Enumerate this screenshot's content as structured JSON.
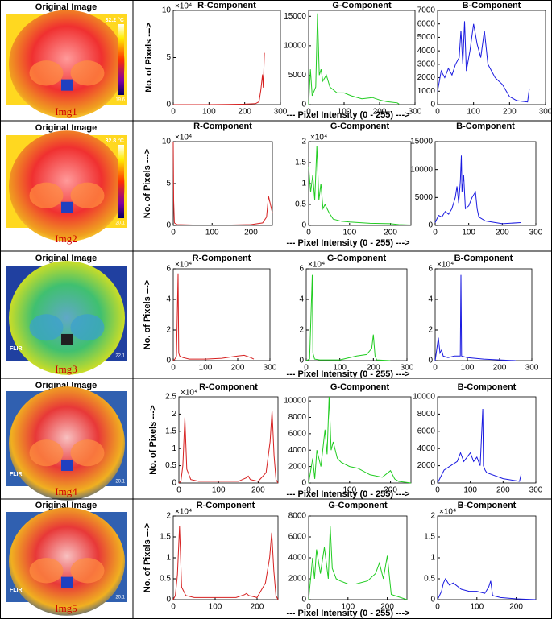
{
  "rows": [
    {
      "image_title": "Original Image",
      "image_label": "Img1",
      "image_texts": [
        "32.2 °C",
        "19.6"
      ],
      "y_label": "No. of Pixels --->",
      "x_label": "--- Pixel Intensity (0 - 255) --->"
    },
    {
      "image_title": "Original Image",
      "image_label": "Img2",
      "image_texts": [
        "32.8 °C",
        "20.1"
      ],
      "y_label": "No. of Pixels --->",
      "x_label": "--- Pixel Intensity (0 - 255) --->"
    },
    {
      "image_title": "Original Image",
      "image_label": "Img3",
      "image_texts": [
        "FLIR",
        "22.1"
      ],
      "y_label": "No. of Pixels --->",
      "x_label": "--- Pixel Intensity (0 - 255) --->"
    },
    {
      "image_title": "Original Image",
      "image_label": "Img4",
      "image_texts": [
        "FLIR",
        "20.1"
      ],
      "y_label": "No. of Pixels --->",
      "x_label": "--- Pixel Intensity (0 - 255) --->"
    },
    {
      "image_title": "Original Image",
      "image_label": "Img5",
      "image_texts": [
        "FLIR",
        "20.1"
      ],
      "y_label": "No. of Pixels --->",
      "x_label": "--- Pixel Intensity (0 - 255) --->"
    }
  ],
  "chart_data": [
    {
      "type": "line",
      "title": "R-Component",
      "color": "#d62020",
      "y_multiplier": "×10⁴",
      "xlim": [
        0,
        300
      ],
      "xticks": [
        0,
        100,
        200,
        300
      ],
      "ylim": [
        0,
        10
      ],
      "yticks": [
        0,
        5,
        10
      ],
      "x": [
        0,
        50,
        100,
        150,
        200,
        230,
        240,
        245,
        250,
        252,
        255
      ],
      "values": [
        0,
        0,
        0,
        0.02,
        0.05,
        0.1,
        0.3,
        1.5,
        3.2,
        1.8,
        5.5
      ]
    },
    {
      "type": "line",
      "title": "G-Component",
      "color": "#22cc22",
      "xlim": [
        0,
        300
      ],
      "xticks": [
        0,
        100,
        200,
        300
      ],
      "ylim": [
        0,
        16000
      ],
      "yticks": [
        0,
        5000,
        10000,
        15000
      ],
      "x": [
        0,
        5,
        10,
        20,
        25,
        30,
        35,
        40,
        50,
        60,
        70,
        80,
        100,
        120,
        150,
        180,
        200,
        220,
        250,
        255
      ],
      "values": [
        0,
        6000,
        1500,
        3000,
        15500,
        5000,
        6000,
        4000,
        5000,
        3000,
        2500,
        2000,
        2000,
        1500,
        1000,
        1200,
        800,
        500,
        300,
        100
      ]
    },
    {
      "type": "line",
      "title": "B-Component",
      "color": "#1a1ae0",
      "xlim": [
        0,
        300
      ],
      "xticks": [
        0,
        100,
        200,
        300
      ],
      "ylim": [
        0,
        7000
      ],
      "yticks": [
        0,
        1000,
        2000,
        3000,
        4000,
        5000,
        6000,
        7000
      ],
      "x": [
        0,
        10,
        20,
        30,
        40,
        50,
        60,
        65,
        70,
        75,
        80,
        90,
        100,
        110,
        120,
        130,
        140,
        150,
        160,
        180,
        200,
        220,
        250,
        255
      ],
      "values": [
        1000,
        2500,
        2000,
        2700,
        2200,
        3000,
        3500,
        5500,
        3000,
        6200,
        2500,
        4000,
        6000,
        4500,
        3500,
        5500,
        3000,
        2500,
        2000,
        1500,
        600,
        300,
        200,
        1200
      ]
    },
    {
      "type": "line",
      "title": "R-Component",
      "color": "#d62020",
      "y_multiplier": "×10⁴",
      "xlim": [
        0,
        255
      ],
      "xticks": [
        0,
        100,
        200
      ],
      "ylim": [
        0,
        10
      ],
      "yticks": [
        0,
        5,
        10
      ],
      "x": [
        0,
        1,
        3,
        10,
        50,
        100,
        150,
        200,
        230,
        240,
        245,
        250,
        255
      ],
      "values": [
        10,
        3,
        0.3,
        0.1,
        0.05,
        0.05,
        0.05,
        0.1,
        0.3,
        1,
        3.5,
        2.5,
        1.5
      ]
    },
    {
      "type": "line",
      "title": "G-Component",
      "color": "#22cc22",
      "y_multiplier": "×10⁴",
      "xlim": [
        0,
        250
      ],
      "xticks": [
        0,
        100,
        200
      ],
      "ylim": [
        0,
        2
      ],
      "yticks": [
        0,
        0.5,
        1,
        1.5,
        2
      ],
      "x": [
        0,
        5,
        10,
        15,
        20,
        25,
        30,
        35,
        40,
        50,
        60,
        80,
        100,
        150,
        200,
        220,
        250
      ],
      "values": [
        1.4,
        0.8,
        1.2,
        0.6,
        1.9,
        0.6,
        1,
        0.4,
        0.5,
        0.3,
        0.15,
        0.1,
        0.08,
        0.05,
        0.04,
        0.02,
        0.01
      ]
    },
    {
      "type": "line",
      "title": "B-Component",
      "color": "#1a1ae0",
      "xlim": [
        0,
        300
      ],
      "xticks": [
        0,
        100,
        200,
        300
      ],
      "ylim": [
        0,
        15000
      ],
      "yticks": [
        0,
        5000,
        10000,
        15000
      ],
      "x": [
        0,
        10,
        20,
        30,
        40,
        50,
        60,
        65,
        70,
        75,
        78,
        80,
        85,
        90,
        100,
        110,
        120,
        125,
        130,
        150,
        200,
        255
      ],
      "values": [
        500,
        1800,
        1500,
        2500,
        2000,
        3000,
        5000,
        7000,
        4000,
        8000,
        12500,
        6000,
        9000,
        3000,
        3500,
        5000,
        6000,
        3000,
        1500,
        800,
        300,
        500
      ]
    },
    {
      "type": "line",
      "title": "R-Component",
      "color": "#d62020",
      "y_multiplier": "×10⁴",
      "xlim": [
        0,
        300
      ],
      "xticks": [
        0,
        100,
        200,
        300
      ],
      "ylim": [
        0,
        6
      ],
      "yticks": [
        0,
        2,
        4,
        6
      ],
      "x": [
        0,
        5,
        10,
        15,
        17,
        20,
        30,
        50,
        100,
        150,
        200,
        220,
        240,
        250
      ],
      "values": [
        0,
        0.1,
        0.3,
        5.7,
        0.5,
        0.3,
        0.2,
        0.1,
        0.1,
        0.15,
        0.3,
        0.35,
        0.2,
        0.1
      ]
    },
    {
      "type": "line",
      "title": "G-Component",
      "color": "#22cc22",
      "y_multiplier": "×10⁴",
      "xlim": [
        0,
        300
      ],
      "xticks": [
        0,
        100,
        200,
        300
      ],
      "ylim": [
        0,
        6
      ],
      "yticks": [
        0,
        2,
        4,
        6
      ],
      "x": [
        0,
        10,
        18,
        20,
        25,
        40,
        100,
        150,
        180,
        195,
        200,
        205,
        210,
        250
      ],
      "values": [
        0,
        0.1,
        5.6,
        0.5,
        0.1,
        0.05,
        0.05,
        0.3,
        0.4,
        0.8,
        1.7,
        0.3,
        0.05,
        0
      ]
    },
    {
      "type": "line",
      "title": "B-Component",
      "color": "#1a1ae0",
      "y_multiplier": "×10⁴",
      "xlim": [
        0,
        300
      ],
      "xticks": [
        0,
        100,
        200,
        300
      ],
      "ylim": [
        0,
        6
      ],
      "yticks": [
        0,
        2,
        4,
        6
      ],
      "x": [
        0,
        10,
        15,
        20,
        25,
        40,
        60,
        78,
        80,
        82,
        100,
        150,
        200,
        250
      ],
      "values": [
        0,
        1.5,
        0.5,
        0.7,
        0.3,
        0.2,
        0.3,
        0.3,
        5.6,
        0.3,
        0.2,
        0.1,
        0.05,
        0
      ]
    },
    {
      "type": "line",
      "title": "R-Component",
      "color": "#d62020",
      "y_multiplier": "×10⁴",
      "xlim": [
        0,
        250
      ],
      "xticks": [
        0,
        100,
        200
      ],
      "ylim": [
        0,
        2.5
      ],
      "yticks": [
        0,
        0.5,
        1,
        1.5,
        2,
        2.5
      ],
      "x": [
        0,
        5,
        10,
        15,
        20,
        30,
        50,
        100,
        150,
        170,
        175,
        180,
        200,
        220,
        230,
        235,
        240,
        245,
        250
      ],
      "values": [
        0,
        0.05,
        0.5,
        1.9,
        0.4,
        0.1,
        0.05,
        0.05,
        0.05,
        0.15,
        0.2,
        0.1,
        0.05,
        0.3,
        1.2,
        2.1,
        0.8,
        0.1,
        0
      ]
    },
    {
      "type": "line",
      "title": "G-Component",
      "color": "#22cc22",
      "xlim": [
        0,
        250
      ],
      "xticks": [
        0,
        100,
        200
      ],
      "ylim": [
        0,
        10500
      ],
      "yticks": [
        0,
        2000,
        4000,
        6000,
        8000,
        10000
      ],
      "x": [
        0,
        10,
        15,
        20,
        30,
        40,
        45,
        50,
        55,
        60,
        70,
        80,
        100,
        120,
        150,
        180,
        200,
        210,
        220,
        250
      ],
      "values": [
        0,
        3000,
        500,
        4000,
        2000,
        6500,
        3500,
        10500,
        4000,
        5000,
        3000,
        2500,
        2000,
        1800,
        1000,
        700,
        1500,
        500,
        200,
        0
      ]
    },
    {
      "type": "line",
      "title": "B-Component",
      "color": "#1a1ae0",
      "xlim": [
        0,
        300
      ],
      "xticks": [
        0,
        100,
        200,
        300
      ],
      "ylim": [
        0,
        10000
      ],
      "yticks": [
        0,
        2000,
        4000,
        6000,
        8000,
        10000
      ],
      "x": [
        0,
        20,
        40,
        60,
        70,
        80,
        90,
        100,
        110,
        120,
        130,
        138,
        140,
        145,
        150,
        200,
        250,
        255
      ],
      "values": [
        0,
        1500,
        2000,
        2500,
        3500,
        2500,
        3000,
        3500,
        2500,
        3000,
        2000,
        8600,
        2000,
        1500,
        1200,
        500,
        200,
        1000
      ]
    },
    {
      "type": "line",
      "title": "R-Component",
      "color": "#d62020",
      "y_multiplier": "×10⁴",
      "xlim": [
        0,
        250
      ],
      "xticks": [
        0,
        100,
        200
      ],
      "ylim": [
        0,
        2
      ],
      "yticks": [
        0,
        0.5,
        1,
        1.5,
        2
      ],
      "x": [
        0,
        5,
        10,
        15,
        20,
        30,
        50,
        100,
        150,
        170,
        175,
        180,
        200,
        220,
        230,
        235,
        240,
        245,
        250
      ],
      "values": [
        0,
        0.1,
        0.6,
        1.75,
        0.3,
        0.1,
        0.05,
        0.05,
        0.05,
        0.12,
        0.15,
        0.1,
        0.05,
        0.4,
        1,
        1.6,
        0.7,
        0.1,
        0
      ]
    },
    {
      "type": "line",
      "title": "G-Component",
      "color": "#22cc22",
      "xlim": [
        0,
        250
      ],
      "xticks": [
        0,
        100,
        200
      ],
      "ylim": [
        0,
        8000
      ],
      "yticks": [
        0,
        2000,
        4000,
        6000,
        8000
      ],
      "x": [
        0,
        10,
        15,
        20,
        30,
        40,
        50,
        55,
        60,
        70,
        80,
        100,
        120,
        150,
        170,
        180,
        190,
        200,
        210,
        250
      ],
      "values": [
        0,
        4000,
        2000,
        4800,
        2500,
        5000,
        2000,
        7000,
        3000,
        2000,
        1800,
        1500,
        1500,
        1800,
        2500,
        3500,
        2000,
        4200,
        500,
        0
      ]
    },
    {
      "type": "line",
      "title": "B-Component",
      "color": "#1a1ae0",
      "y_multiplier": "×10⁴",
      "xlim": [
        0,
        250
      ],
      "xticks": [
        0,
        100,
        200
      ],
      "ylim": [
        0,
        2
      ],
      "yticks": [
        0,
        0.5,
        1,
        1.5,
        2
      ],
      "x": [
        0,
        10,
        15,
        20,
        30,
        40,
        60,
        80,
        100,
        120,
        130,
        135,
        140,
        160,
        200,
        250
      ],
      "values": [
        0,
        0.2,
        0.4,
        0.5,
        0.35,
        0.4,
        0.25,
        0.2,
        0.2,
        0.15,
        0.3,
        0.45,
        0.1,
        0.05,
        0.02,
        0
      ]
    }
  ]
}
